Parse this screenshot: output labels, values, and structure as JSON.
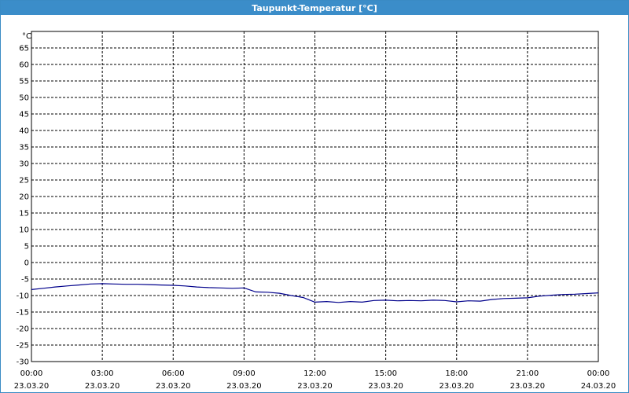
{
  "window": {
    "title": "Taupunkt-Temperatur [°C]"
  },
  "chart_data": {
    "type": "line",
    "title": "Taupunkt-Temperatur [°C]",
    "ylabel": "°C",
    "xlabel": "",
    "ylim": [
      -30,
      70
    ],
    "yticks": [
      65,
      60,
      55,
      50,
      45,
      40,
      35,
      30,
      25,
      20,
      15,
      10,
      5,
      0,
      -5,
      -10,
      -15,
      -20,
      -25,
      -30
    ],
    "xlim": [
      "23.03.20 00:00",
      "24.03.20 00:00"
    ],
    "xticks": [
      {
        "time": "00:00",
        "date": "23.03.20"
      },
      {
        "time": "03:00",
        "date": "23.03.20"
      },
      {
        "time": "06:00",
        "date": "23.03.20"
      },
      {
        "time": "09:00",
        "date": "23.03.20"
      },
      {
        "time": "12:00",
        "date": "23.03.20"
      },
      {
        "time": "15:00",
        "date": "23.03.20"
      },
      {
        "time": "18:00",
        "date": "23.03.20"
      },
      {
        "time": "21:00",
        "date": "23.03.20"
      },
      {
        "time": "00:00",
        "date": "24.03.20"
      }
    ],
    "grid": true,
    "line_color": "#00008b",
    "series": [
      {
        "x": [
          "23.03.20 00:00",
          "23.03.20 00:30",
          "23.03.20 01:00",
          "23.03.20 01:30",
          "23.03.20 02:00",
          "23.03.20 02:30",
          "23.03.20 03:00",
          "23.03.20 03:30",
          "23.03.20 04:00",
          "23.03.20 04:30",
          "23.03.20 05:00",
          "23.03.20 05:30",
          "23.03.20 06:00",
          "23.03.20 06:30",
          "23.03.20 07:00",
          "23.03.20 07:30",
          "23.03.20 08:00",
          "23.03.20 08:30",
          "23.03.20 09:00",
          "23.03.20 09:30",
          "23.03.20 10:00",
          "23.03.20 10:30",
          "23.03.20 11:00",
          "23.03.20 11:30",
          "23.03.20 12:00",
          "23.03.20 12:30",
          "23.03.20 13:00",
          "23.03.20 13:30",
          "23.03.20 14:00",
          "23.03.20 14:30",
          "23.03.20 15:00",
          "23.03.20 15:30",
          "23.03.20 16:00",
          "23.03.20 16:30",
          "23.03.20 17:00",
          "23.03.20 17:30",
          "23.03.20 18:00",
          "23.03.20 18:30",
          "23.03.20 19:00",
          "23.03.20 19:30",
          "23.03.20 20:00",
          "23.03.20 20:30",
          "23.03.20 21:00",
          "23.03.20 21:30",
          "23.03.20 22:00",
          "23.03.20 22:30",
          "23.03.20 23:00",
          "23.03.20 23:30",
          "24.03.20 00:00"
        ],
        "y": [
          -8.2,
          -7.8,
          -7.4,
          -7.1,
          -6.8,
          -6.5,
          -6.4,
          -6.5,
          -6.6,
          -6.6,
          -6.7,
          -6.8,
          -6.9,
          -7.1,
          -7.4,
          -7.6,
          -7.7,
          -7.8,
          -7.7,
          -8.9,
          -9.0,
          -9.3,
          -10.0,
          -10.6,
          -12.0,
          -11.8,
          -12.1,
          -11.8,
          -12.0,
          -11.5,
          -11.4,
          -11.6,
          -11.5,
          -11.6,
          -11.4,
          -11.5,
          -11.9,
          -11.6,
          -11.7,
          -11.2,
          -10.9,
          -10.8,
          -10.7,
          -10.2,
          -9.9,
          -9.7,
          -9.6,
          -9.4,
          -9.2
        ]
      }
    ]
  }
}
